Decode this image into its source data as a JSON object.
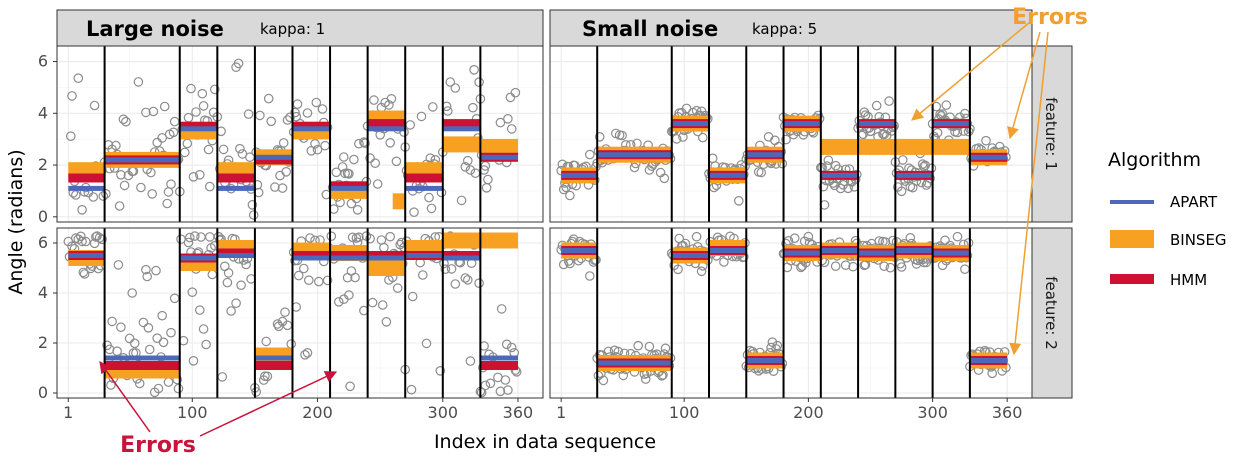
{
  "chart_data": {
    "type": "scatter",
    "xlabel": "Index in data sequence",
    "ylabel": "Angle (radians)",
    "xlim": [
      -8,
      380
    ],
    "ylim": [
      -0.2,
      6.6
    ],
    "x_ticks": [
      1,
      100,
      200,
      300,
      360
    ],
    "y_ticks": [
      0,
      2,
      4,
      6
    ],
    "grid": true,
    "columns": [
      {
        "title": "Large noise",
        "subtitle": "kappa: 1"
      },
      {
        "title": "Small noise",
        "subtitle": "kappa: 5"
      }
    ],
    "rows": [
      {
        "label": "feature: 1"
      },
      {
        "label": "feature: 2"
      }
    ],
    "legend": {
      "title": "Algorithm",
      "position": "right",
      "entries": [
        {
          "name": "APART",
          "color": "#4c68b8"
        },
        {
          "name": "BINSEG",
          "color": "#f7a021"
        },
        {
          "name": "HMM",
          "color": "#cc1133"
        }
      ]
    },
    "changepoints": [
      30,
      90,
      120,
      150,
      180,
      210,
      240,
      270,
      300,
      330
    ],
    "segment_means": {
      "feature1": [
        1.6,
        2.4,
        3.6,
        1.6,
        2.4,
        3.6,
        1.6,
        3.6,
        1.6,
        3.6,
        2.3
      ],
      "feature2": [
        5.6,
        1.2,
        5.6,
        5.7,
        1.3,
        5.6,
        5.7,
        5.6,
        5.7,
        5.6,
        1.3
      ]
    },
    "panels": [
      {
        "column": 0,
        "row": 0,
        "spread": 1.35,
        "algorithms": {
          "APART": [
            [
              1,
              30,
              1.1
            ],
            [
              30,
              90,
              2.2
            ],
            [
              90,
              120,
              3.4
            ],
            [
              120,
              150,
              1.1
            ],
            [
              150,
              180,
              2.3
            ],
            [
              180,
              210,
              3.4
            ],
            [
              210,
              240,
              1.1
            ],
            [
              240,
              270,
              3.4
            ],
            [
              270,
              300,
              1.1
            ],
            [
              300,
              330,
              3.4
            ],
            [
              330,
              360,
              2.3
            ]
          ],
          "BINSEG": [
            [
              1,
              30,
              1.8
            ],
            [
              30,
              90,
              2.2
            ],
            [
              90,
              120,
              3.3
            ],
            [
              120,
              150,
              1.8
            ],
            [
              150,
              180,
              2.3
            ],
            [
              180,
              210,
              3.3
            ],
            [
              210,
              240,
              1.0
            ],
            [
              240,
              270,
              3.8
            ],
            [
              260,
              270,
              0.6
            ],
            [
              270,
              300,
              1.8
            ],
            [
              300,
              330,
              2.8
            ],
            [
              330,
              360,
              2.7
            ]
          ],
          "HMM": [
            [
              1,
              30,
              1.5
            ],
            [
              30,
              90,
              2.2
            ],
            [
              90,
              120,
              3.5
            ],
            [
              120,
              150,
              1.5
            ],
            [
              150,
              180,
              2.2
            ],
            [
              180,
              210,
              3.5
            ],
            [
              210,
              240,
              1.2
            ],
            [
              240,
              270,
              3.6
            ],
            [
              270,
              300,
              1.5
            ],
            [
              300,
              330,
              3.6
            ],
            [
              330,
              360,
              2.3
            ]
          ]
        }
      },
      {
        "column": 1,
        "row": 0,
        "spread": 0.45,
        "algorithms": {
          "APART": [
            [
              1,
              30,
              1.6
            ],
            [
              30,
              90,
              2.4
            ],
            [
              90,
              120,
              3.6
            ],
            [
              120,
              150,
              1.6
            ],
            [
              150,
              180,
              2.4
            ],
            [
              180,
              210,
              3.6
            ],
            [
              210,
              240,
              1.6
            ],
            [
              240,
              270,
              3.6
            ],
            [
              270,
              300,
              1.6
            ],
            [
              300,
              330,
              3.6
            ],
            [
              330,
              360,
              2.3
            ]
          ],
          "BINSEG": [
            [
              1,
              30,
              1.6
            ],
            [
              30,
              90,
              2.4
            ],
            [
              90,
              120,
              3.6
            ],
            [
              120,
              150,
              1.6
            ],
            [
              150,
              180,
              2.4
            ],
            [
              180,
              210,
              3.6
            ],
            [
              210,
              330,
              2.7
            ],
            [
              330,
              360,
              2.3
            ]
          ],
          "HMM": [
            [
              1,
              30,
              1.6
            ],
            [
              30,
              90,
              2.4
            ],
            [
              90,
              120,
              3.6
            ],
            [
              120,
              150,
              1.6
            ],
            [
              150,
              180,
              2.4
            ],
            [
              180,
              210,
              3.6
            ],
            [
              210,
              240,
              1.6
            ],
            [
              240,
              270,
              3.6
            ],
            [
              270,
              300,
              1.6
            ],
            [
              300,
              330,
              3.6
            ],
            [
              330,
              360,
              2.3
            ]
          ]
        }
      },
      {
        "column": 0,
        "row": 1,
        "spread": 1.35,
        "algorithms": {
          "APART": [
            [
              1,
              30,
              5.5
            ],
            [
              30,
              90,
              1.4
            ],
            [
              90,
              120,
              5.4
            ],
            [
              120,
              150,
              5.5
            ],
            [
              150,
              180,
              1.4
            ],
            [
              180,
              210,
              5.4
            ],
            [
              210,
              240,
              5.4
            ],
            [
              240,
              270,
              5.4
            ],
            [
              270,
              300,
              5.5
            ],
            [
              300,
              330,
              5.4
            ],
            [
              330,
              360,
              1.4
            ]
          ],
          "BINSEG": [
            [
              1,
              30,
              5.4
            ],
            [
              30,
              90,
              0.9
            ],
            [
              90,
              120,
              5.2
            ],
            [
              120,
              150,
              5.8
            ],
            [
              150,
              180,
              1.5
            ],
            [
              180,
              210,
              5.7
            ],
            [
              210,
              240,
              5.6
            ],
            [
              240,
              270,
              5.0
            ],
            [
              270,
              300,
              5.8
            ],
            [
              300,
              360,
              6.1
            ]
          ],
          "HMM": [
            [
              1,
              30,
              5.5
            ],
            [
              30,
              90,
              1.1
            ],
            [
              90,
              120,
              5.4
            ],
            [
              120,
              150,
              5.6
            ],
            [
              150,
              180,
              1.1
            ],
            [
              180,
              210,
              5.5
            ],
            [
              210,
              240,
              5.5
            ],
            [
              240,
              270,
              5.5
            ],
            [
              270,
              300,
              5.5
            ],
            [
              300,
              330,
              5.5
            ],
            [
              330,
              360,
              1.1
            ]
          ]
        }
      },
      {
        "column": 1,
        "row": 1,
        "spread": 0.45,
        "algorithms": {
          "APART": [
            [
              1,
              30,
              5.7
            ],
            [
              30,
              90,
              1.2
            ],
            [
              90,
              120,
              5.5
            ],
            [
              120,
              150,
              5.7
            ],
            [
              150,
              180,
              1.3
            ],
            [
              180,
              210,
              5.6
            ],
            [
              210,
              240,
              5.7
            ],
            [
              240,
              270,
              5.6
            ],
            [
              270,
              300,
              5.7
            ],
            [
              300,
              330,
              5.6
            ],
            [
              330,
              360,
              1.3
            ]
          ],
          "BINSEG": [
            [
              1,
              30,
              5.7
            ],
            [
              30,
              90,
              1.2
            ],
            [
              90,
              120,
              5.5
            ],
            [
              120,
              150,
              5.8
            ],
            [
              150,
              180,
              1.3
            ],
            [
              180,
              210,
              5.6
            ],
            [
              210,
              240,
              5.7
            ],
            [
              240,
              270,
              5.6
            ],
            [
              270,
              300,
              5.7
            ],
            [
              300,
              330,
              5.6
            ],
            [
              330,
              360,
              1.3
            ]
          ],
          "HMM": [
            [
              1,
              30,
              5.7
            ],
            [
              30,
              90,
              1.2
            ],
            [
              90,
              120,
              5.5
            ],
            [
              120,
              150,
              5.7
            ],
            [
              150,
              180,
              1.3
            ],
            [
              180,
              210,
              5.6
            ],
            [
              210,
              240,
              5.7
            ],
            [
              240,
              270,
              5.6
            ],
            [
              270,
              300,
              5.7
            ],
            [
              300,
              330,
              5.6
            ],
            [
              330,
              360,
              1.3
            ]
          ]
        }
      }
    ],
    "annotations": [
      {
        "text": "Errors",
        "color": "#f0a030",
        "column": 1
      },
      {
        "text": "Errors",
        "color": "#c8143c",
        "column": 0
      }
    ]
  }
}
